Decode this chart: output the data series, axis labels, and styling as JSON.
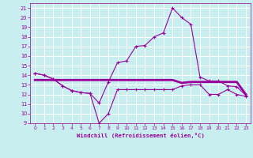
{
  "x": [
    0,
    1,
    2,
    3,
    4,
    5,
    6,
    7,
    8,
    9,
    10,
    11,
    12,
    13,
    14,
    15,
    16,
    17,
    18,
    19,
    20,
    21,
    22,
    23
  ],
  "line_top": [
    14.2,
    14.0,
    13.6,
    12.9,
    12.4,
    12.2,
    12.1,
    11.1,
    13.3,
    15.3,
    15.5,
    17.0,
    17.1,
    18.0,
    18.4,
    21.0,
    20.0,
    19.3,
    13.8,
    13.4,
    13.4,
    12.9,
    12.8,
    11.9
  ],
  "line_mid": [
    13.5,
    13.5,
    13.5,
    13.5,
    13.5,
    13.5,
    13.5,
    13.5,
    13.5,
    13.5,
    13.5,
    13.5,
    13.5,
    13.5,
    13.5,
    13.5,
    13.2,
    13.3,
    13.3,
    13.3,
    13.3,
    13.3,
    13.3,
    12.0
  ],
  "line_bot": [
    14.2,
    14.0,
    13.6,
    12.9,
    12.4,
    12.2,
    12.1,
    9.0,
    10.0,
    12.5,
    12.5,
    12.5,
    12.5,
    12.5,
    12.5,
    12.5,
    12.9,
    13.0,
    13.0,
    12.0,
    12.0,
    12.5,
    12.0,
    11.8
  ],
  "bg_color": "#c8eef0",
  "grid_color": "#b0dde0",
  "line_color": "#990099",
  "xlabel": "Windchill (Refroidissement éolien,°C)",
  "ylim": [
    9,
    21.5
  ],
  "xlim": [
    -0.5,
    23.5
  ],
  "yticks": [
    9,
    10,
    11,
    12,
    13,
    14,
    15,
    16,
    17,
    18,
    19,
    20,
    21
  ],
  "xticks": [
    0,
    1,
    2,
    3,
    4,
    5,
    6,
    7,
    8,
    9,
    10,
    11,
    12,
    13,
    14,
    15,
    16,
    17,
    18,
    19,
    20,
    21,
    22,
    23
  ]
}
